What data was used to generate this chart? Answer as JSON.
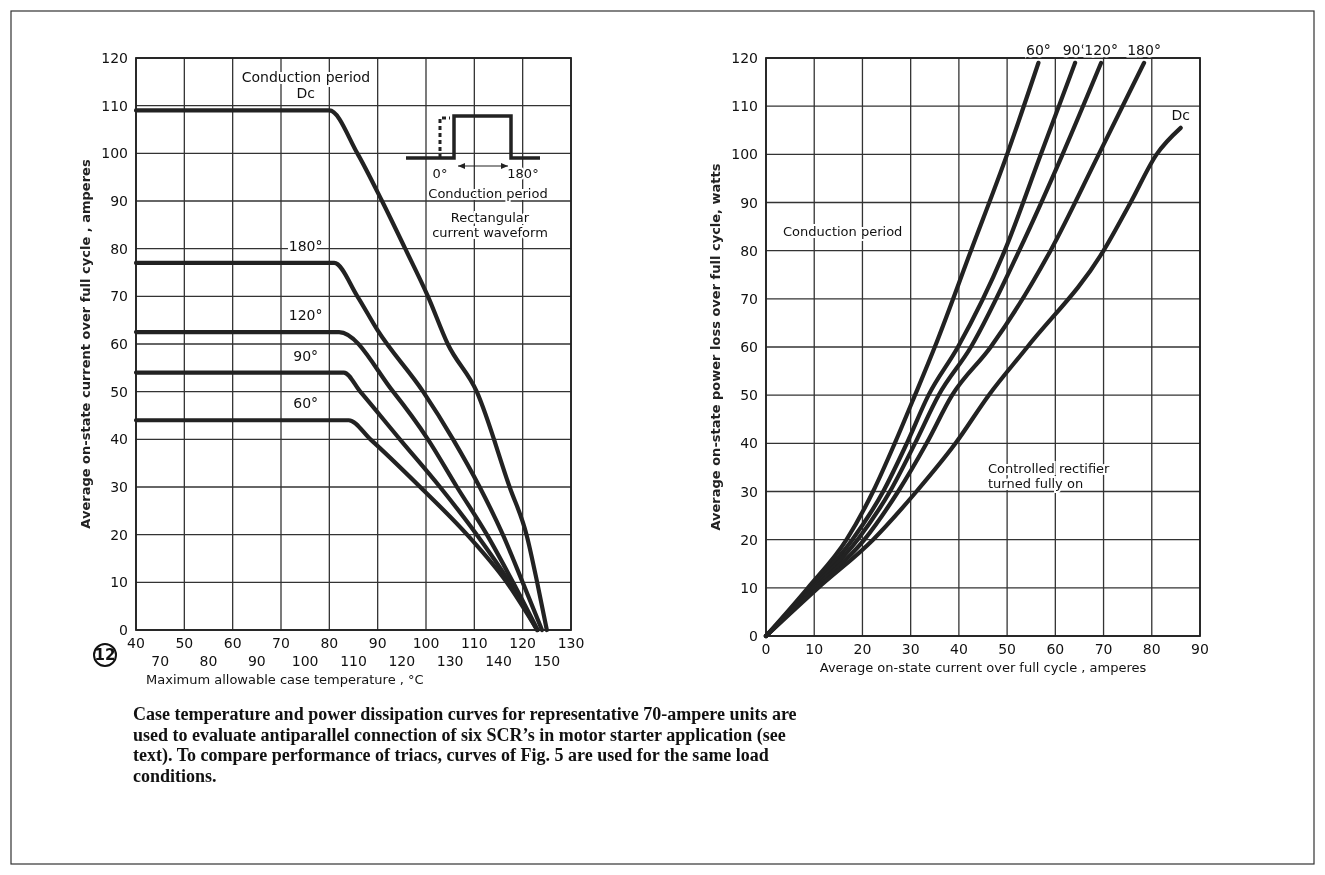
{
  "chart_data": [
    {
      "type": "line",
      "xlabel": "Maximum allowable case temperature , °C",
      "ylabel": "Average on-state current over full cycle , amperes",
      "xlim": [
        40,
        130
      ],
      "xticks": [
        40,
        50,
        60,
        70,
        80,
        90,
        100,
        110,
        120,
        130
      ],
      "x2lim": [
        65,
        155
      ],
      "x2ticks": [
        70,
        80,
        90,
        100,
        110,
        120,
        130,
        140,
        150
      ],
      "ylim": [
        0,
        120
      ],
      "yticks": [
        0,
        10,
        20,
        30,
        40,
        50,
        60,
        70,
        80,
        90,
        100,
        110,
        120
      ],
      "grid": true,
      "legend": false,
      "line_style": "solid",
      "marker": "none",
      "series": [
        {
          "name": "Dc",
          "color": "#222222",
          "x": [
            40,
            80,
            85.8,
            90.9,
            95.7,
            100.4,
            104.5,
            110.5,
            117.3,
            120.8,
            123,
            125
          ],
          "values": [
            109,
            109,
            100,
            90,
            80,
            70,
            60,
            50,
            30,
            20,
            10,
            0
          ]
        },
        {
          "name": "180°",
          "color": "#222222",
          "x": [
            40,
            81,
            85.8,
            89.9,
            99.4,
            105.6,
            111.1,
            115.9,
            120,
            124
          ],
          "values": [
            77,
            77,
            70,
            63,
            50,
            40,
            30,
            20,
            10,
            0
          ]
        },
        {
          "name": "120°",
          "color": "#222222",
          "x": [
            40,
            82,
            93.2,
            100.4,
            106.4,
            112.6,
            118,
            123.1
          ],
          "values": [
            62.5,
            62.5,
            50,
            40,
            30,
            20,
            10,
            0
          ]
        },
        {
          "name": "90°",
          "color": "#222222",
          "x": [
            40,
            83,
            86.4,
            94.6,
            102.9,
            110.5,
            117.3,
            123
          ],
          "values": [
            54,
            54,
            50,
            40,
            30,
            20,
            10,
            0
          ]
        },
        {
          "name": "60°",
          "color": "#222222",
          "x": [
            40,
            84,
            88.5,
            98.8,
            108.5,
            116.7,
            123
          ],
          "values": [
            44,
            44,
            40,
            30,
            20,
            10,
            0
          ]
        }
      ],
      "annotations": [
        "Conduction period",
        "0°",
        "180°",
        "Conduction period",
        "Rectangular current waveform",
        "12",
        "Case temperature and power dissipation curves for representative 70-ampere units are used to evaluate antiparallel connection of six SCR’s in motor starter application (see text).  To compare performance of triacs, curves of Fig. 5 are used for the same load conditions."
      ]
    },
    {
      "type": "line",
      "xlabel": "Average on-state current over full cycle , amperes",
      "ylabel": "Average on-state power loss over full cycle, watts",
      "xlim": [
        0,
        90
      ],
      "xticks": [
        0,
        10,
        20,
        30,
        40,
        50,
        60,
        70,
        80,
        90
      ],
      "ylim": [
        0,
        120
      ],
      "yticks": [
        0,
        10,
        20,
        30,
        40,
        50,
        60,
        70,
        80,
        90,
        100,
        110,
        120
      ],
      "grid": true,
      "legend": false,
      "line_style": "solid",
      "marker": "none",
      "series": [
        {
          "name": "60°",
          "color": "#222222",
          "x": [
            0,
            8.7,
            16.7,
            22.2,
            26.7,
            30.9,
            35,
            42.5,
            50,
            56.5
          ],
          "values": [
            0,
            10,
            20,
            30,
            40,
            50,
            60,
            80,
            100,
            119
          ]
        },
        {
          "name": "90°",
          "color": "#222222",
          "x": [
            0,
            9.3,
            17.9,
            24.3,
            29.2,
            33.7,
            39.8,
            49.5,
            57,
            64.1
          ],
          "values": [
            0,
            10,
            20,
            30,
            40,
            50,
            60,
            80,
            100,
            119
          ]
        },
        {
          "name": "120°",
          "color": "#222222",
          "x": [
            0,
            9.7,
            19,
            25.7,
            30.9,
            35.8,
            42.5,
            52.5,
            61.5,
            69.5
          ],
          "values": [
            0,
            10,
            20,
            30,
            40,
            50,
            60,
            80,
            100,
            119
          ]
        },
        {
          "name": "180°",
          "color": "#222222",
          "x": [
            0,
            10.2,
            20.4,
            27.4,
            33.3,
            38.6,
            46.6,
            59,
            69,
            78.4
          ],
          "values": [
            0,
            10,
            20,
            30,
            40,
            50,
            60,
            80,
            100,
            119
          ]
        },
        {
          "name": "Dc",
          "color": "#222222",
          "x": [
            0,
            10.8,
            22.2,
            31.2,
            39.3,
            46.2,
            54.2,
            70,
            75.6,
            81,
            86
          ],
          "values": [
            0,
            10,
            20,
            30,
            40,
            50,
            60,
            80,
            90,
            100,
            105.5
          ]
        }
      ],
      "annotations": [
        "Conduction period",
        "Controlled rectifier turned fully on"
      ]
    }
  ]
}
